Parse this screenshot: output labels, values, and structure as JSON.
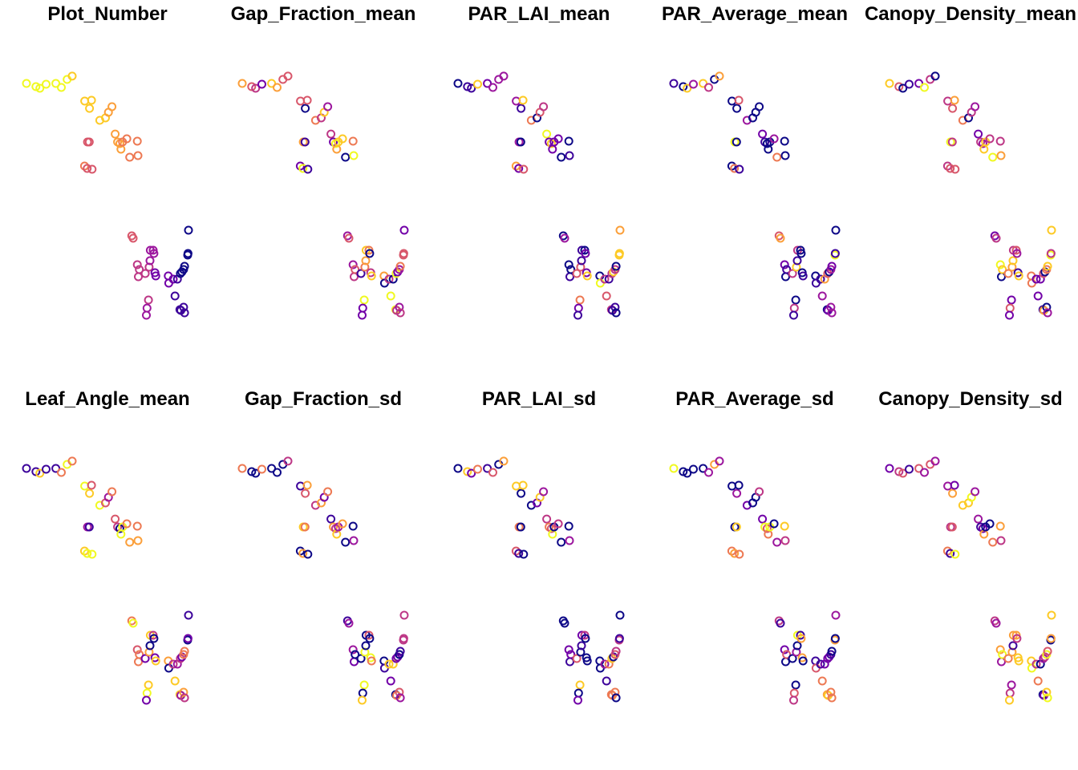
{
  "chart_data": [
    {
      "type": "scatter",
      "title": "Plot_Number"
    },
    {
      "type": "scatter",
      "title": "Gap_Fraction_mean"
    },
    {
      "type": "scatter",
      "title": "PAR_LAI_mean"
    },
    {
      "type": "scatter",
      "title": "PAR_Average_mean"
    },
    {
      "type": "scatter",
      "title": "Canopy_Density_mean"
    },
    {
      "type": "scatter",
      "title": "Leaf_Angle_mean"
    },
    {
      "type": "scatter",
      "title": "Gap_Fraction_sd"
    },
    {
      "type": "scatter",
      "title": "PAR_LAI_sd"
    },
    {
      "type": "scatter",
      "title": "PAR_Average_sd"
    },
    {
      "type": "scatter",
      "title": "Canopy_Density_sd"
    }
  ],
  "points": [
    [
      0.0,
      0.0
    ],
    [
      0.171,
      0.038
    ],
    [
      0.241,
      0.057
    ],
    [
      0.355,
      0.009
    ],
    [
      0.53,
      0.0
    ],
    [
      0.629,
      0.047
    ],
    [
      0.734,
      -0.047
    ],
    [
      0.825,
      -0.086
    ],
    [
      1.05,
      0.208
    ],
    [
      1.137,
      0.293
    ],
    [
      1.173,
      0.198
    ],
    [
      1.323,
      0.434
    ],
    [
      1.426,
      0.406
    ],
    [
      1.479,
      0.34
    ],
    [
      1.542,
      0.274
    ],
    [
      1.6,
      0.595
    ],
    [
      1.644,
      0.689
    ],
    [
      1.685,
      0.708
    ],
    [
      1.705,
      0.774
    ],
    [
      1.734,
      0.689
    ],
    [
      1.81,
      0.651
    ],
    [
      1.863,
      0.868
    ],
    [
      2.0,
      0.679
    ],
    [
      2.012,
      0.849
    ],
    [
      1.048,
      0.972
    ],
    [
      1.101,
      0.689
    ],
    [
      1.133,
      0.689
    ],
    [
      1.095,
      1.0
    ],
    [
      1.183,
      1.009
    ],
    [
      1.9,
      1.792
    ],
    [
      1.924,
      1.821
    ],
    [
      2.0,
      2.132
    ],
    [
      2.018,
      2.274
    ],
    [
      2.036,
      2.189
    ],
    [
      2.143,
      2.236
    ],
    [
      2.213,
      2.16
    ],
    [
      2.201,
      2.547
    ],
    [
      2.175,
      2.642
    ],
    [
      2.163,
      2.726
    ],
    [
      2.228,
      2.085
    ],
    [
      2.234,
      1.962
    ],
    [
      2.286,
      1.962
    ],
    [
      2.3,
      2.0
    ],
    [
      2.318,
      2.226
    ],
    [
      2.333,
      2.264
    ],
    [
      2.558,
      2.264
    ],
    [
      2.567,
      2.349
    ],
    [
      2.648,
      2.302
    ],
    [
      2.68,
      2.5
    ],
    [
      2.768,
      2.66
    ],
    [
      2.785,
      2.67
    ],
    [
      2.835,
      2.632
    ],
    [
      2.852,
      2.698
    ],
    [
      2.724,
      2.302
    ],
    [
      2.777,
      2.236
    ],
    [
      2.805,
      2.217
    ],
    [
      2.835,
      2.189
    ],
    [
      2.852,
      2.151
    ],
    [
      2.909,
      2.019
    ],
    [
      2.914,
      2.0
    ],
    [
      2.923,
      1.726
    ]
  ]
}
